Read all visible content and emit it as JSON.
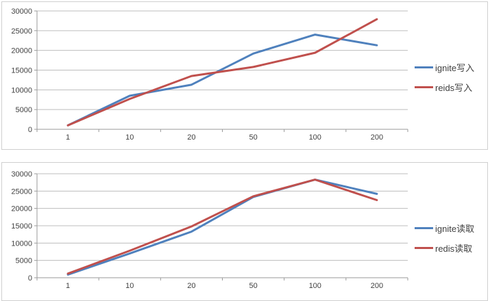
{
  "colors": {
    "ignite_blue": "#4F81BD",
    "redis_red": "#C0504D",
    "gridline": "#BDBDBD",
    "axis": "#9A9A9A",
    "text": "#3F3F3F",
    "frame_border": "#CFCFCF"
  },
  "chart_data": [
    {
      "type": "line",
      "title": "",
      "xlabel": "",
      "ylabel": "",
      "categories": [
        "1",
        "10",
        "20",
        "50",
        "100",
        "200"
      ],
      "yticks": [
        0,
        5000,
        10000,
        15000,
        20000,
        25000,
        30000
      ],
      "ylim": [
        0,
        30000
      ],
      "grid": true,
      "legend_position": "right",
      "series": [
        {
          "name": "ignite写入",
          "color": "#4F81BD",
          "values": [
            1000,
            8500,
            11300,
            19200,
            24000,
            21300
          ]
        },
        {
          "name": "reids写入",
          "color": "#C0504D",
          "values": [
            1000,
            7700,
            13500,
            15800,
            19400,
            27900
          ]
        }
      ]
    },
    {
      "type": "line",
      "title": "",
      "xlabel": "",
      "ylabel": "",
      "categories": [
        "1",
        "10",
        "20",
        "50",
        "100",
        "200"
      ],
      "yticks": [
        0,
        5000,
        10000,
        15000,
        20000,
        25000,
        30000
      ],
      "ylim": [
        0,
        30000
      ],
      "grid": true,
      "legend_position": "right",
      "series": [
        {
          "name": "ignite读取",
          "color": "#4F81BD",
          "values": [
            900,
            7000,
            13300,
            23300,
            28300,
            24200
          ]
        },
        {
          "name": "redis读取",
          "color": "#C0504D",
          "values": [
            1200,
            7800,
            14800,
            23500,
            28300,
            22400
          ]
        }
      ]
    }
  ]
}
